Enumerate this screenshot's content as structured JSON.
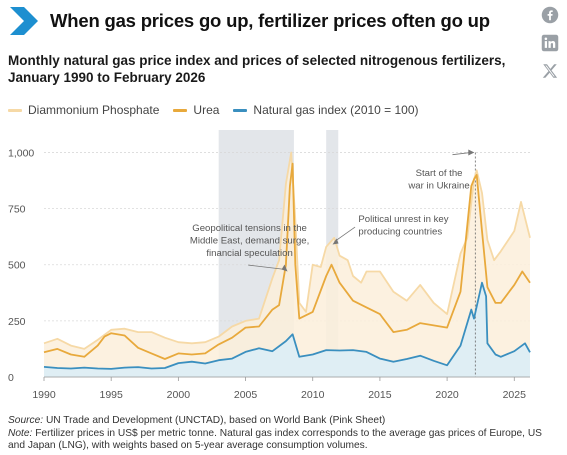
{
  "header": {
    "title": "When gas prices go up, fertilizer prices often go up"
  },
  "subtitle": {
    "line1": "Monthly natural gas price index and prices of selected nitrogenous fertilizers,",
    "line2": "January 1990 to February 2026"
  },
  "share": {
    "icons": [
      "facebook-icon",
      "linkedin-icon",
      "x-icon"
    ]
  },
  "colors": {
    "dap": "#f6d9a6",
    "urea": "#e8a93c",
    "gas": "#3a8fbf",
    "gas_fill": "#dcedf6",
    "dap_fill": "#fbeedb",
    "shade": "#e3e6ea",
    "chevron": "#1d8fd0"
  },
  "legend": {
    "items": [
      {
        "label": "Diammonium Phosphate"
      },
      {
        "label": "Urea"
      },
      {
        "label": "Natural gas index (2010 = 100)"
      }
    ]
  },
  "footer": {
    "source_label": "Source:",
    "source_text": " UN Trade and Development (UNCTAD), based on World Bank (Pink Sheet)",
    "note_label": "Note:",
    "note_text": " Fertilizer prices in US$ per metric tonne. Natural gas index corresponds to the average gas prices of Europe, US and Japan (LNG), with weights based on 5-year average consumption volumes."
  },
  "chart_data": {
    "type": "line",
    "xlim": [
      1990,
      2026.17
    ],
    "ylim": [
      0,
      1100
    ],
    "x_ticks": [
      1990,
      1995,
      2000,
      2005,
      2010,
      2015,
      2020,
      2025
    ],
    "x_tick_labels": [
      "1990",
      "1995",
      "2000",
      "2005",
      "2010",
      "2015",
      "2020",
      "2025"
    ],
    "y_ticks": [
      0,
      250,
      500,
      750,
      1000
    ],
    "y_tick_labels": [
      "0",
      "250",
      "500",
      "750",
      "1,000"
    ],
    "grid": true,
    "legend_position": "top-left",
    "shaded_periods": [
      {
        "start": 2003.0,
        "end": 2008.6
      },
      {
        "start": 2011.0,
        "end": 2011.9
      }
    ],
    "annotations": [
      {
        "lines": [
          "Geopolitical tensions in the",
          "Middle East, demand surge,",
          "financial speculation"
        ],
        "at": [
          2008.2,
          470
        ]
      },
      {
        "lines": [
          "Political unrest in key",
          "producing countries"
        ],
        "at": [
          2011.4,
          590
        ]
      },
      {
        "lines": [
          "Start of the",
          "war in Ukraine"
        ],
        "at": [
          2022.1,
          940
        ]
      }
    ],
    "series": [
      {
        "name": "Diammonium Phosphate",
        "points": [
          [
            1990,
            150
          ],
          [
            1991,
            170
          ],
          [
            1992,
            140
          ],
          [
            1993,
            125
          ],
          [
            1994,
            165
          ],
          [
            1995,
            210
          ],
          [
            1996,
            215
          ],
          [
            1997,
            200
          ],
          [
            1998,
            200
          ],
          [
            1999,
            175
          ],
          [
            2000,
            155
          ],
          [
            2001,
            150
          ],
          [
            2002,
            155
          ],
          [
            2003,
            180
          ],
          [
            2004,
            225
          ],
          [
            2005,
            250
          ],
          [
            2006,
            260
          ],
          [
            2007,
            440
          ],
          [
            2007.5,
            520
          ],
          [
            2008,
            860
          ],
          [
            2008.4,
            1000
          ],
          [
            2008.7,
            700
          ],
          [
            2009,
            330
          ],
          [
            2009.5,
            290
          ],
          [
            2010,
            500
          ],
          [
            2010.6,
            490
          ],
          [
            2011,
            580
          ],
          [
            2011.6,
            620
          ],
          [
            2012,
            540
          ],
          [
            2012.6,
            520
          ],
          [
            2013,
            450
          ],
          [
            2013.6,
            420
          ],
          [
            2014,
            470
          ],
          [
            2015,
            470
          ],
          [
            2016,
            380
          ],
          [
            2017,
            340
          ],
          [
            2018,
            410
          ],
          [
            2019,
            330
          ],
          [
            2020,
            280
          ],
          [
            2021,
            550
          ],
          [
            2021.5,
            620
          ],
          [
            2022,
            880
          ],
          [
            2022.2,
            920
          ],
          [
            2022.6,
            820
          ],
          [
            2023,
            610
          ],
          [
            2023.5,
            520
          ],
          [
            2024,
            560
          ],
          [
            2025,
            650
          ],
          [
            2025.5,
            780
          ],
          [
            2026.17,
            620
          ]
        ]
      },
      {
        "name": "Urea",
        "points": [
          [
            1990,
            110
          ],
          [
            1991,
            125
          ],
          [
            1992,
            100
          ],
          [
            1993,
            90
          ],
          [
            1994,
            140
          ],
          [
            1994.5,
            180
          ],
          [
            1995,
            195
          ],
          [
            1996,
            185
          ],
          [
            1997,
            130
          ],
          [
            1998,
            105
          ],
          [
            1999,
            80
          ],
          [
            2000,
            105
          ],
          [
            2001,
            100
          ],
          [
            2002,
            105
          ],
          [
            2003,
            145
          ],
          [
            2004,
            175
          ],
          [
            2005,
            220
          ],
          [
            2006,
            225
          ],
          [
            2007,
            300
          ],
          [
            2007.5,
            320
          ],
          [
            2008,
            500
          ],
          [
            2008.3,
            850
          ],
          [
            2008.5,
            950
          ],
          [
            2008.7,
            500
          ],
          [
            2009,
            260
          ],
          [
            2010,
            290
          ],
          [
            2011,
            450
          ],
          [
            2011.4,
            500
          ],
          [
            2012,
            420
          ],
          [
            2013,
            340
          ],
          [
            2014,
            310
          ],
          [
            2015,
            280
          ],
          [
            2016,
            200
          ],
          [
            2017,
            210
          ],
          [
            2018,
            240
          ],
          [
            2019,
            230
          ],
          [
            2020,
            220
          ],
          [
            2021,
            380
          ],
          [
            2021.8,
            850
          ],
          [
            2022,
            880
          ],
          [
            2022.2,
            900
          ],
          [
            2022.6,
            650
          ],
          [
            2023,
            400
          ],
          [
            2023.6,
            330
          ],
          [
            2024,
            330
          ],
          [
            2025,
            410
          ],
          [
            2025.6,
            470
          ],
          [
            2026.17,
            420
          ]
        ]
      },
      {
        "name": "Natural gas index (2010 = 100)",
        "points": [
          [
            1990,
            45
          ],
          [
            1991,
            40
          ],
          [
            1992,
            38
          ],
          [
            1993,
            42
          ],
          [
            1994,
            38
          ],
          [
            1995,
            36
          ],
          [
            1996,
            42
          ],
          [
            1997,
            44
          ],
          [
            1998,
            38
          ],
          [
            1999,
            40
          ],
          [
            2000,
            62
          ],
          [
            2001,
            68
          ],
          [
            2002,
            60
          ],
          [
            2003,
            75
          ],
          [
            2004,
            82
          ],
          [
            2005,
            112
          ],
          [
            2006,
            128
          ],
          [
            2007,
            115
          ],
          [
            2008,
            160
          ],
          [
            2008.5,
            190
          ],
          [
            2009,
            90
          ],
          [
            2010,
            100
          ],
          [
            2011,
            120
          ],
          [
            2012,
            118
          ],
          [
            2013,
            120
          ],
          [
            2014,
            112
          ],
          [
            2015,
            82
          ],
          [
            2016,
            68
          ],
          [
            2017,
            80
          ],
          [
            2018,
            95
          ],
          [
            2019,
            72
          ],
          [
            2020,
            52
          ],
          [
            2021,
            140
          ],
          [
            2021.8,
            300
          ],
          [
            2022,
            260
          ],
          [
            2022.6,
            420
          ],
          [
            2022.9,
            360
          ],
          [
            2023,
            150
          ],
          [
            2023.6,
            100
          ],
          [
            2024,
            90
          ],
          [
            2025,
            115
          ],
          [
            2025.8,
            150
          ],
          [
            2026.17,
            110
          ]
        ]
      }
    ]
  }
}
